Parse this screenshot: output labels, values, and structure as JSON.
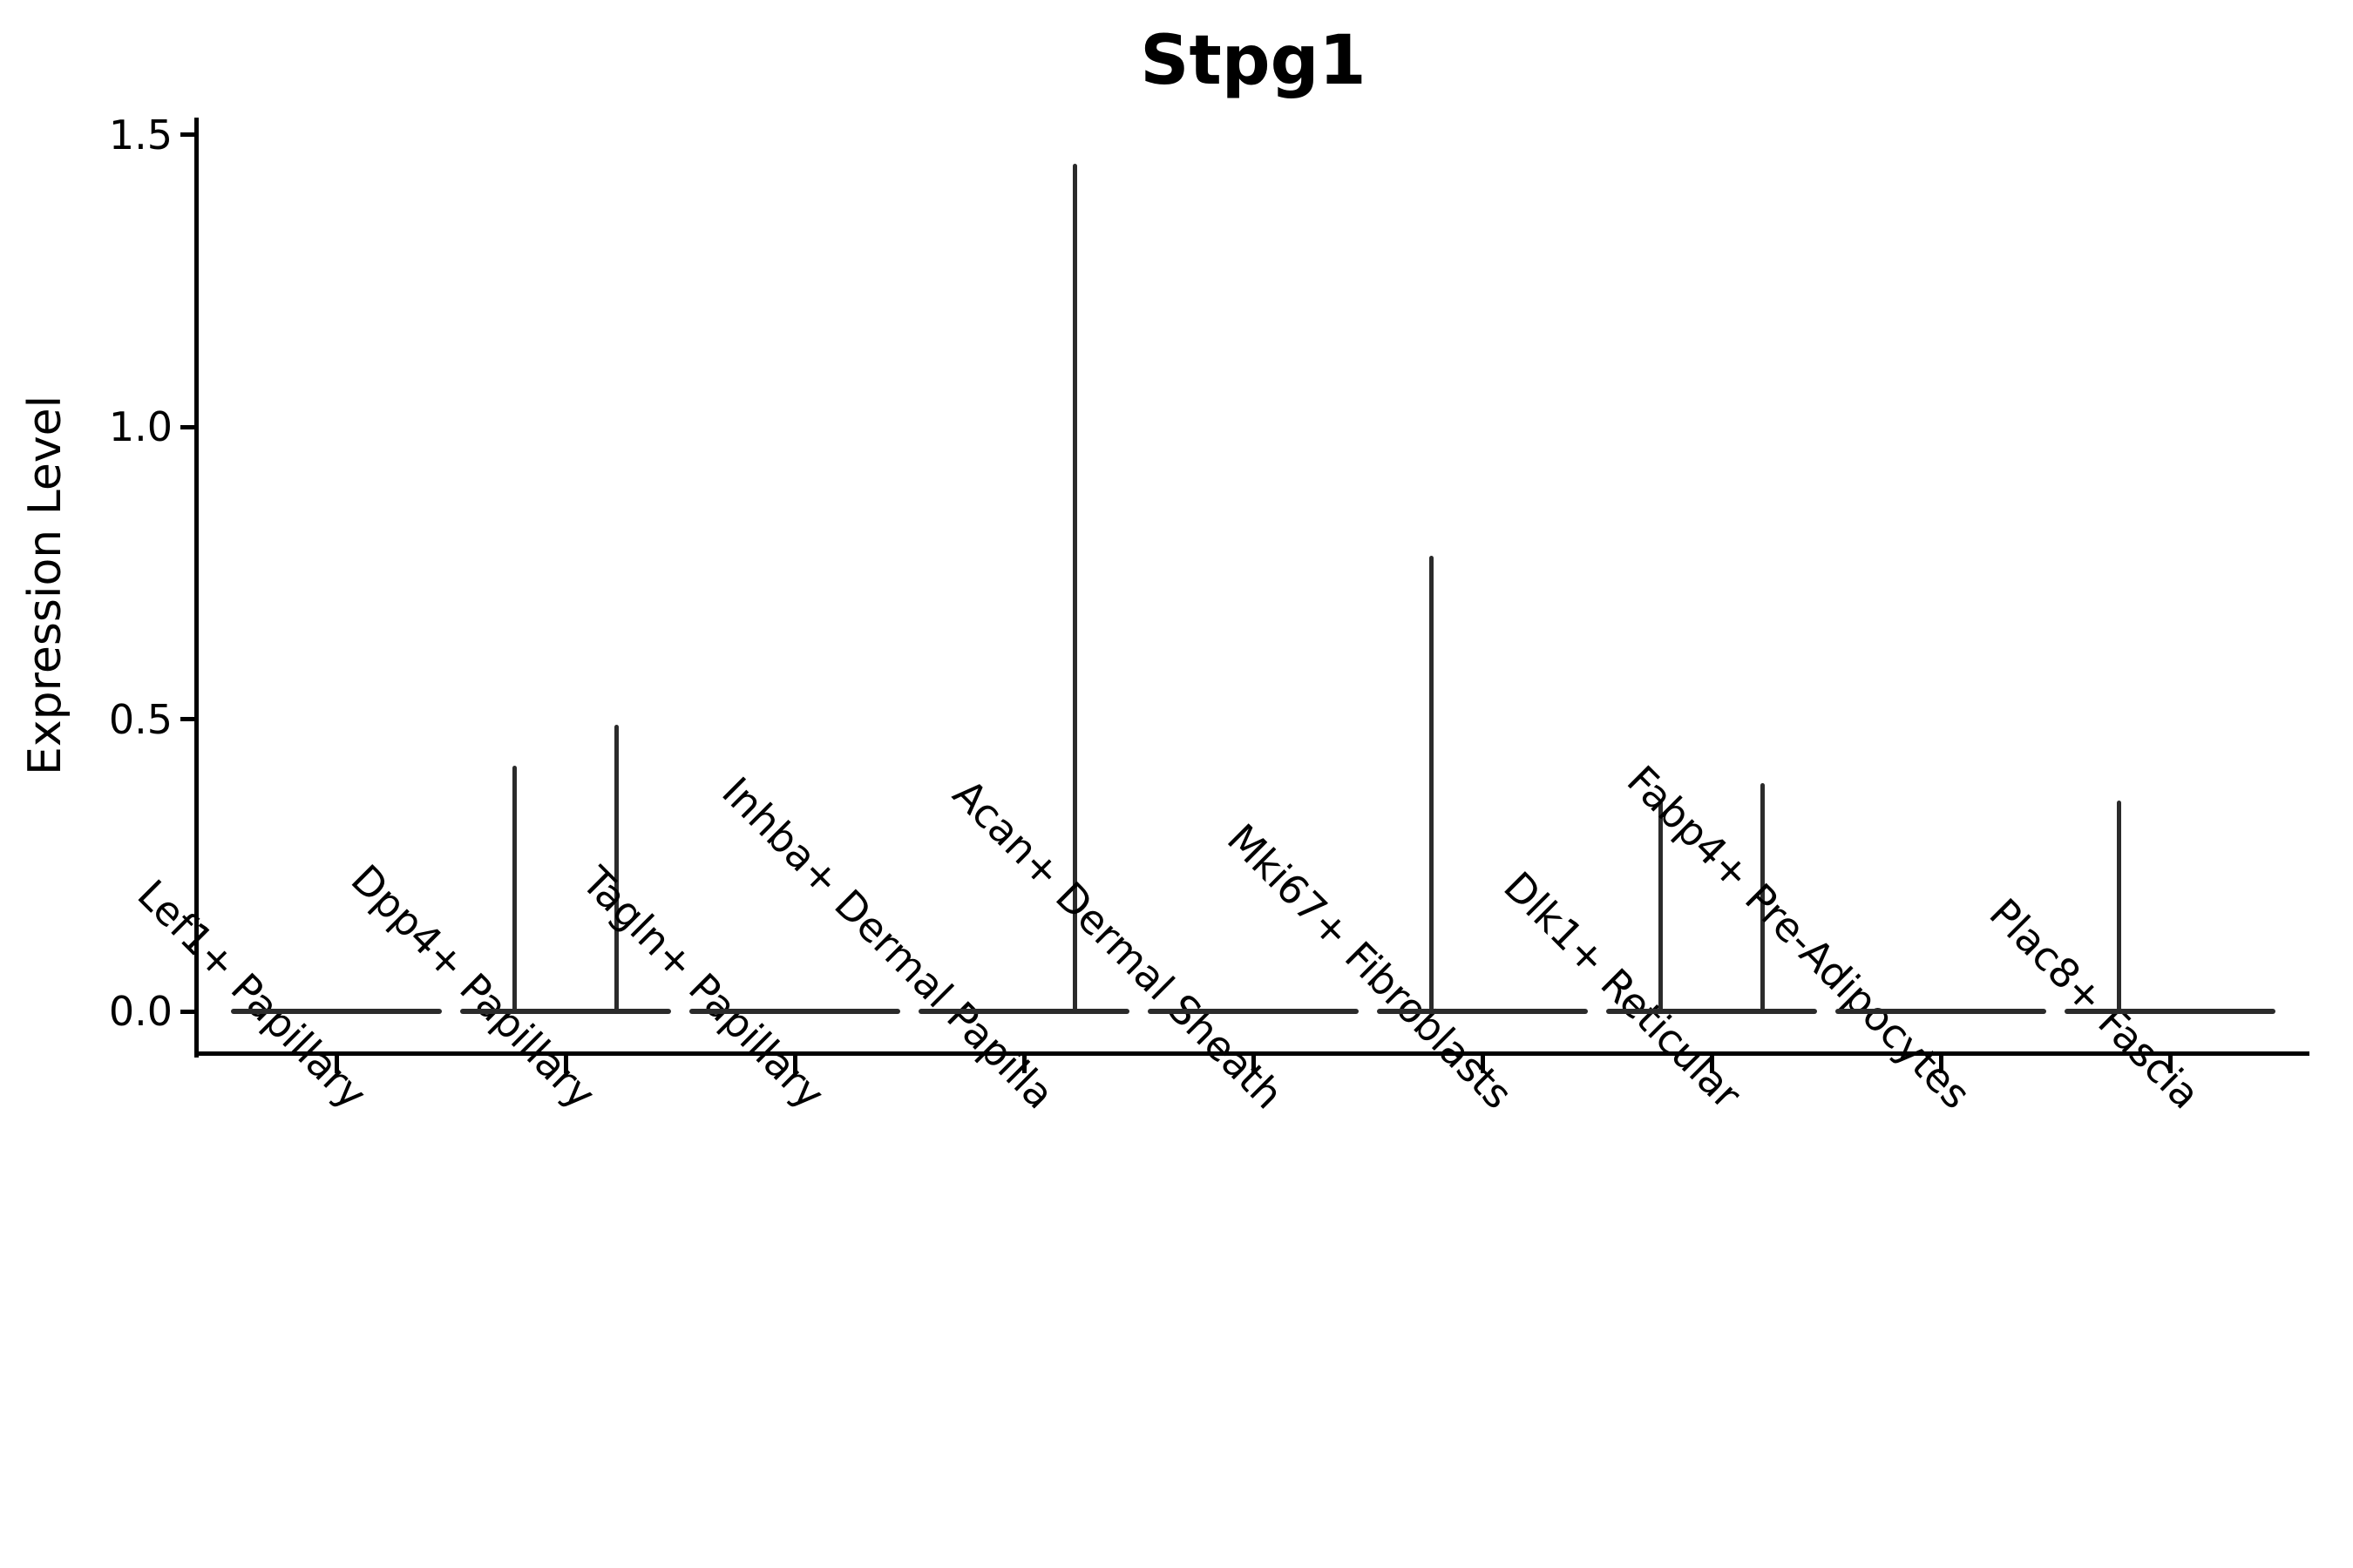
{
  "title": "Stpg1",
  "ylabel": "Expression Level",
  "colors": {
    "background": "#ffffff",
    "axis": "#000000",
    "violin_line": "#2b2b2b",
    "text": "#000000"
  },
  "chart_data": {
    "type": "violin",
    "title": "Stpg1",
    "xlabel": "",
    "ylabel": "Expression Level",
    "grid": false,
    "legend": "none",
    "ylim": [
      -0.07,
      1.53
    ],
    "yticks": [
      0.0,
      0.5,
      1.0,
      1.5
    ],
    "ytick_labels": [
      "0.0",
      "0.5",
      "1.0",
      "1.5"
    ],
    "categories": [
      "Lef1+ Papillary",
      "Dpp4+ Papillary",
      "Tagln+ Papillary",
      "Inhba+ Dermal Papilla",
      "Acan+ Dermal Sheath",
      "Mki67+ Fibroblasts",
      "Dlk1+ Reticular",
      "Fabp4+ Pre-Adipocytes",
      "Plac8+ Fascia"
    ],
    "series": [
      {
        "category": "Lef1+ Papillary",
        "baseline": 0.0,
        "spikes": []
      },
      {
        "category": "Dpp4+ Papillary",
        "baseline": 0.0,
        "spikes": [
          {
            "group": "left",
            "max": 0.42
          },
          {
            "group": "right",
            "max": 0.49
          }
        ]
      },
      {
        "category": "Tagln+ Papillary",
        "baseline": 0.0,
        "spikes": []
      },
      {
        "category": "Inhba+ Dermal Papilla",
        "baseline": 0.0,
        "spikes": [
          {
            "group": "right",
            "max": 1.45
          }
        ]
      },
      {
        "category": "Acan+ Dermal Sheath",
        "baseline": 0.0,
        "spikes": []
      },
      {
        "category": "Mki67+ Fibroblasts",
        "baseline": 0.0,
        "spikes": [
          {
            "group": "left",
            "max": 0.78
          }
        ]
      },
      {
        "category": "Dlk1+ Reticular",
        "baseline": 0.0,
        "spikes": [
          {
            "group": "left",
            "max": 0.36
          },
          {
            "group": "right",
            "max": 0.39
          }
        ]
      },
      {
        "category": "Fabp4+ Pre-Adipocytes",
        "baseline": 0.0,
        "spikes": []
      },
      {
        "category": "Plac8+ Fascia",
        "baseline": 0.0,
        "spikes": [
          {
            "group": "left",
            "max": 0.36
          }
        ]
      }
    ]
  }
}
